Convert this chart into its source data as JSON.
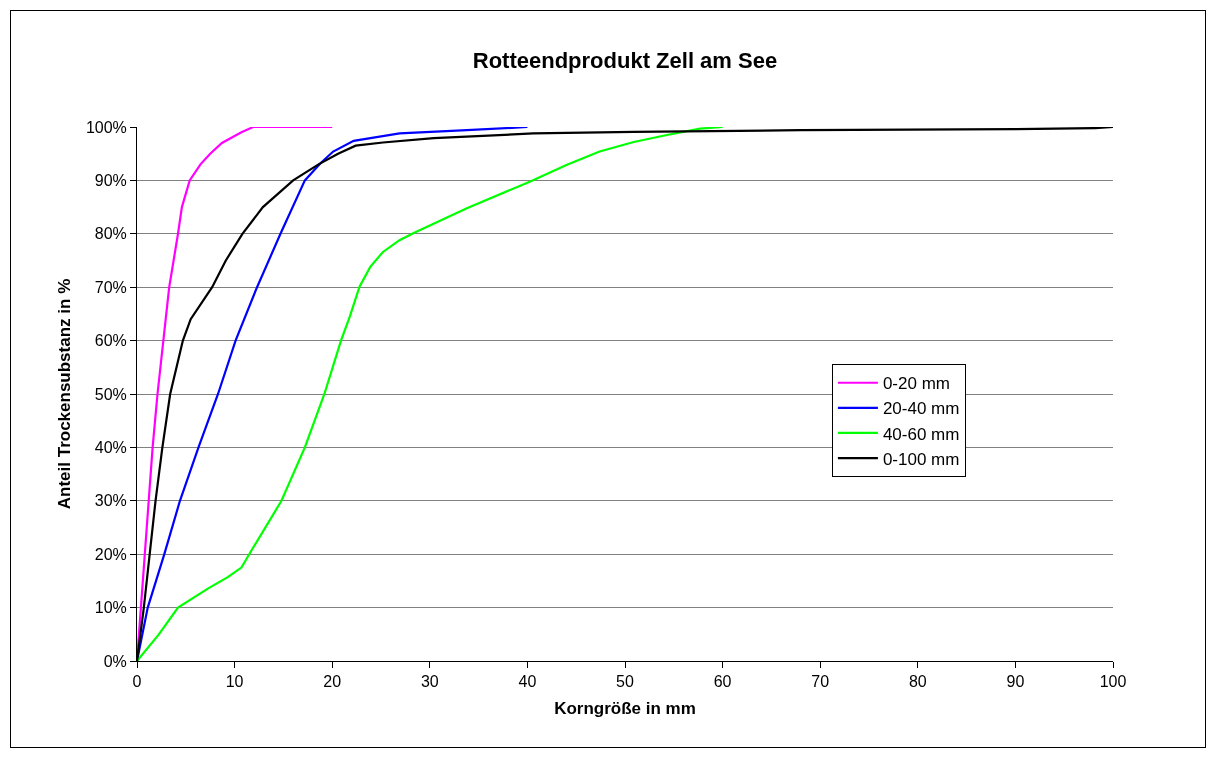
{
  "chart_data": {
    "type": "line",
    "title": "Rotteendprodukt Zell am See",
    "xlabel": "Korngröße in mm",
    "ylabel": "Anteil Trockensubstanz in %",
    "series": [
      {
        "name": "0-20 mm",
        "color": "#ff00ff",
        "x": [
          0,
          0.4,
          0.8,
          1.2,
          1.6,
          2.1,
          2.7,
          3.3,
          4.2,
          4.6,
          5.4,
          6.5,
          7.5,
          8.7,
          10.7,
          11.9,
          20
        ],
        "values": [
          0,
          10,
          20,
          30,
          40,
          50,
          60,
          70,
          80,
          85,
          90,
          93,
          95,
          97,
          99,
          100,
          100
        ]
      },
      {
        "name": "20-40 mm",
        "color": "#0000ff",
        "x": [
          0,
          1.1,
          2.8,
          4.4,
          6.3,
          8.3,
          10.1,
          12.3,
          14.7,
          17.2,
          18.8,
          20.1,
          22.2,
          26.9,
          33.8,
          40
        ],
        "values": [
          0,
          10,
          20,
          30,
          40,
          50,
          60,
          70,
          80,
          90,
          93.2,
          95.4,
          97.4,
          98.8,
          99.4,
          100
        ]
      },
      {
        "name": "40-60 mm",
        "color": "#00ff00",
        "x": [
          0,
          2.2,
          4.2,
          7.3,
          9.3,
          10.7,
          11.5,
          14.8,
          17.2,
          19.2,
          20.9,
          21.8,
          22.8,
          23.9,
          25.2,
          26.9,
          28.3,
          33.8,
          40.3,
          44,
          47.4,
          50.9,
          54.3,
          57.7,
          60
        ],
        "values": [
          0,
          4.9,
          10,
          13.6,
          15.7,
          17.5,
          20,
          30,
          40,
          50,
          60,
          64.5,
          70.1,
          73.8,
          76.6,
          78.8,
          80.1,
          84.8,
          89.8,
          92.9,
          95.4,
          97.2,
          98.5,
          99.7,
          100
        ]
      },
      {
        "name": "0-100 mm",
        "color": "#000000",
        "x": [
          0,
          0.7,
          1.3,
          1.9,
          2.6,
          3.4,
          4.7,
          5.5,
          7.7,
          9.1,
          10.8,
          12.9,
          16,
          18.6,
          20.6,
          22.4,
          25.2,
          30.4,
          40.6,
          50.9,
          68,
          89.9,
          98.2,
          100
        ],
        "values": [
          0,
          10,
          20,
          30,
          40,
          50,
          60,
          64,
          70,
          75,
          80,
          85,
          90,
          93,
          95,
          96.5,
          97.1,
          97.9,
          98.8,
          99.1,
          99.4,
          99.6,
          99.8,
          100
        ]
      }
    ],
    "xlim": [
      0,
      100
    ],
    "xticks": [
      0,
      10,
      20,
      30,
      40,
      50,
      60,
      70,
      80,
      90,
      100
    ],
    "ylim": [
      0,
      100
    ],
    "yticks": [
      {
        "value": 0,
        "label": "0%"
      },
      {
        "value": 10,
        "label": "10%"
      },
      {
        "value": 20,
        "label": "20%"
      },
      {
        "value": 30,
        "label": "30%"
      },
      {
        "value": 40,
        "label": "40%"
      },
      {
        "value": 50,
        "label": "50%"
      },
      {
        "value": 60,
        "label": "60%"
      },
      {
        "value": 70,
        "label": "70%"
      },
      {
        "value": 80,
        "label": "80%"
      },
      {
        "value": 90,
        "label": "90%"
      },
      {
        "value": 100,
        "label": "100%"
      }
    ],
    "grid": "y",
    "legend": "right"
  }
}
